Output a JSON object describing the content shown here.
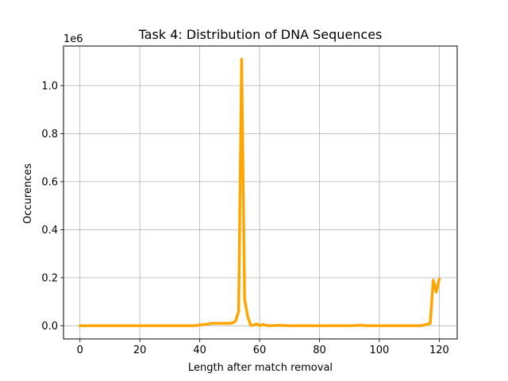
{
  "chart_data": {
    "type": "line",
    "title": "Task 4: Distribution of DNA Sequences",
    "xlabel": "Length after match removal",
    "ylabel": "Occurences",
    "y_offset_label": "1e6",
    "xlim": [
      -5.5,
      126
    ],
    "ylim": [
      -0.055,
      1.165
    ],
    "grid": true,
    "line_color": "#ffa500",
    "x_ticks": [
      0,
      20,
      40,
      60,
      80,
      100,
      120
    ],
    "x_tick_labels": [
      "0",
      "20",
      "40",
      "60",
      "80",
      "100",
      "120"
    ],
    "y_ticks": [
      0.0,
      0.2,
      0.4,
      0.6,
      0.8,
      1.0
    ],
    "y_tick_labels": [
      "0.0",
      "0.2",
      "0.4",
      "0.6",
      "0.8",
      "1.0"
    ],
    "series": [
      {
        "x": [
          0,
          5,
          10,
          15,
          20,
          25,
          30,
          35,
          38,
          40,
          42,
          44,
          46,
          48,
          50,
          51,
          52,
          53,
          54,
          55,
          56,
          57,
          58,
          59,
          60,
          61,
          62,
          64,
          66,
          70,
          80,
          90,
          94,
          96,
          100,
          110,
          114,
          116,
          117,
          118,
          119,
          120
        ],
        "values": [
          0.0,
          0.0,
          0.0,
          0.0,
          0.0,
          0.0,
          0.0,
          0.0,
          0.0,
          0.003,
          0.006,
          0.01,
          0.01,
          0.01,
          0.01,
          0.012,
          0.02,
          0.06,
          1.11,
          0.11,
          0.04,
          0.002,
          0.002,
          0.008,
          0.0,
          0.005,
          0.002,
          0.0,
          0.002,
          0.0,
          0.0,
          0.0,
          0.002,
          0.0,
          0.0,
          0.0,
          0.0,
          0.006,
          0.01,
          0.19,
          0.14,
          0.195
        ]
      }
    ]
  }
}
